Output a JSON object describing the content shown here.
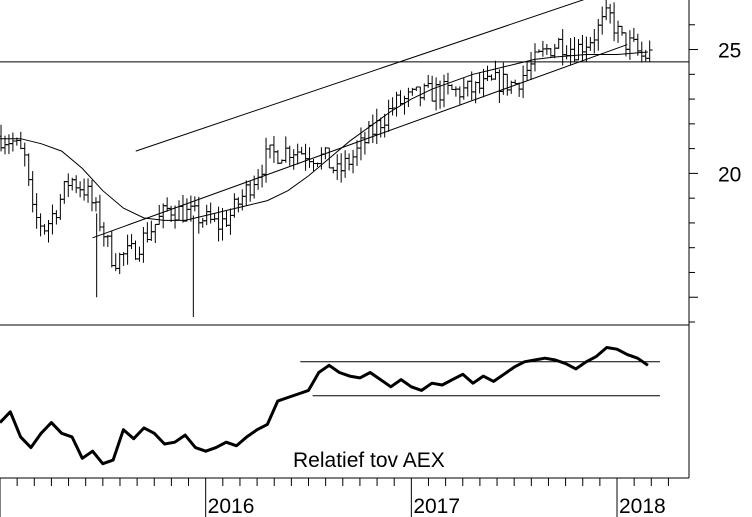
{
  "chart_data": [
    {
      "type": "candlestick",
      "y_axis_position": "right",
      "ylim": [
        14,
        27
      ],
      "y_ticks": [
        "25",
        "20"
      ],
      "x_tick_labels": [
        "2016",
        "2017",
        "2018"
      ],
      "grid": false,
      "moving_average": [
        [
          2015.0,
          21.4
        ],
        [
          2015.1,
          21.4
        ],
        [
          2015.2,
          21.2
        ],
        [
          2015.3,
          20.9
        ],
        [
          2015.4,
          20.2
        ],
        [
          2015.5,
          19.3
        ],
        [
          2015.6,
          18.6
        ],
        [
          2015.7,
          18.2
        ],
        [
          2015.8,
          18.1
        ],
        [
          2015.9,
          18.1
        ],
        [
          2016.0,
          18.3
        ],
        [
          2016.1,
          18.5
        ],
        [
          2016.2,
          18.7
        ],
        [
          2016.3,
          18.9
        ],
        [
          2016.4,
          19.3
        ],
        [
          2016.5,
          19.9
        ],
        [
          2016.6,
          20.6
        ],
        [
          2016.7,
          21.3
        ],
        [
          2016.8,
          21.9
        ],
        [
          2016.9,
          22.5
        ],
        [
          2017.0,
          23.0
        ],
        [
          2017.1,
          23.4
        ],
        [
          2017.2,
          23.7
        ],
        [
          2017.3,
          24.0
        ],
        [
          2017.4,
          24.2
        ],
        [
          2017.5,
          24.4
        ],
        [
          2017.6,
          24.6
        ],
        [
          2017.7,
          24.7
        ],
        [
          2017.85,
          24.8
        ],
        [
          2018.0,
          24.8
        ],
        [
          2018.15,
          24.9
        ]
      ],
      "horizontal_lines": [
        24.5
      ],
      "trend_lines": [
        {
          "from": [
            2015.66,
            20.9
          ],
          "to": [
            2017.94,
            27.3
          ]
        },
        {
          "from": [
            2015.45,
            17.4
          ],
          "to": [
            2018.05,
            25.2
          ]
        }
      ]
    },
    {
      "type": "line",
      "series": [
        {
          "values": [
            [
              2015.0,
              56
            ],
            [
              2015.05,
              62
            ],
            [
              2015.1,
              48
            ],
            [
              2015.15,
              42
            ],
            [
              2015.2,
              50
            ],
            [
              2015.25,
              56
            ],
            [
              2015.3,
              50
            ],
            [
              2015.35,
              48
            ],
            [
              2015.4,
              36
            ],
            [
              2015.45,
              40
            ],
            [
              2015.5,
              33
            ],
            [
              2015.55,
              35
            ],
            [
              2015.6,
              52
            ],
            [
              2015.65,
              47
            ],
            [
              2015.7,
              53
            ],
            [
              2015.75,
              50
            ],
            [
              2015.8,
              44
            ],
            [
              2015.85,
              45
            ],
            [
              2015.9,
              49
            ],
            [
              2015.95,
              42
            ],
            [
              2016.0,
              40
            ],
            [
              2016.05,
              42
            ],
            [
              2016.1,
              45
            ],
            [
              2016.15,
              43
            ],
            [
              2016.2,
              48
            ],
            [
              2016.25,
              52
            ],
            [
              2016.3,
              55
            ],
            [
              2016.35,
              68
            ],
            [
              2016.4,
              70
            ],
            [
              2016.45,
              72
            ],
            [
              2016.5,
              74
            ],
            [
              2016.55,
              84
            ],
            [
              2016.6,
              88
            ],
            [
              2016.65,
              84
            ],
            [
              2016.7,
              82
            ],
            [
              2016.75,
              81
            ],
            [
              2016.8,
              84
            ],
            [
              2016.85,
              80
            ],
            [
              2016.9,
              76
            ],
            [
              2016.95,
              80
            ],
            [
              2017.0,
              76
            ],
            [
              2017.05,
              74
            ],
            [
              2017.1,
              78
            ],
            [
              2017.15,
              77
            ],
            [
              2017.2,
              80
            ],
            [
              2017.25,
              83
            ],
            [
              2017.3,
              78
            ],
            [
              2017.35,
              82
            ],
            [
              2017.4,
              79
            ],
            [
              2017.45,
              83
            ],
            [
              2017.5,
              87
            ],
            [
              2017.55,
              90
            ],
            [
              2017.6,
              91
            ],
            [
              2017.65,
              92
            ],
            [
              2017.7,
              91
            ],
            [
              2017.75,
              89
            ],
            [
              2017.8,
              86
            ],
            [
              2017.85,
              90
            ],
            [
              2017.9,
              93
            ],
            [
              2017.95,
              98
            ],
            [
              2018.0,
              97
            ],
            [
              2018.05,
              94
            ],
            [
              2018.1,
              92
            ],
            [
              2018.15,
              88
            ]
          ]
        }
      ],
      "horizontal_lines": [
        90,
        71
      ],
      "annotation": "Relatief tov AEX"
    }
  ]
}
